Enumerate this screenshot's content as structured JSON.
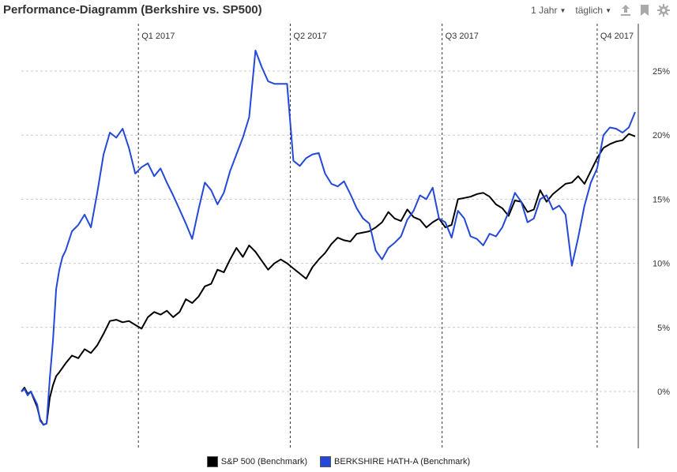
{
  "title": "Performance-Diagramm (Berkshire vs. SP500)",
  "toolbar": {
    "period_label": "1 Jahr",
    "interval_label": "täglich",
    "icons": [
      "upload-icon",
      "bookmark-icon",
      "gear-icon"
    ]
  },
  "chart_data": {
    "type": "line",
    "title": "Performance-Diagramm (Berkshire vs. SP500)",
    "xlabel": "",
    "ylabel": "",
    "ylim": [
      -3.5,
      28
    ],
    "yticks": [
      0,
      5,
      10,
      15,
      20,
      25
    ],
    "ytick_labels": [
      "0%",
      "5%",
      "10%",
      "15%",
      "20%",
      "25%"
    ],
    "grid": true,
    "legend_position": "bottom-center",
    "quarter_markers": [
      {
        "label": "Q1 2017",
        "x": 37
      },
      {
        "label": "Q2 2017",
        "x": 85
      },
      {
        "label": "Q3 2017",
        "x": 133
      },
      {
        "label": "Q4 2017",
        "x": 182
      }
    ],
    "x_range": [
      0,
      195
    ],
    "series": [
      {
        "name": "S&P 500  (Benchmark)",
        "color": "#000000",
        "x": [
          0,
          1,
          2,
          3,
          4,
          5,
          6,
          7,
          8,
          9,
          10,
          11,
          12,
          14,
          16,
          18,
          20,
          22,
          24,
          26,
          28,
          30,
          32,
          34,
          36,
          38,
          40,
          42,
          44,
          46,
          48,
          50,
          52,
          54,
          56,
          58,
          60,
          62,
          64,
          66,
          68,
          70,
          72,
          74,
          76,
          78,
          80,
          82,
          84,
          86,
          88,
          90,
          92,
          94,
          96,
          98,
          100,
          102,
          104,
          106,
          108,
          110,
          112,
          114,
          116,
          118,
          120,
          122,
          124,
          126,
          128,
          130,
          132,
          134,
          136,
          138,
          140,
          142,
          144,
          146,
          148,
          150,
          152,
          154,
          156,
          158,
          160,
          162,
          164,
          166,
          168,
          170,
          172,
          174,
          176,
          178,
          180,
          182,
          184,
          186,
          188,
          190,
          192,
          194
        ],
        "values": [
          0,
          0.3,
          -0.2,
          0,
          -0.6,
          -1.2,
          -2.2,
          -2.6,
          -2.5,
          -0.5,
          0.5,
          1.2,
          1.5,
          2.2,
          2.8,
          2.6,
          3.3,
          3.0,
          3.6,
          4.5,
          5.5,
          5.6,
          5.4,
          5.5,
          5.2,
          4.9,
          5.8,
          6.2,
          6.0,
          6.3,
          5.8,
          6.2,
          7.2,
          6.9,
          7.4,
          8.2,
          8.4,
          9.5,
          9.3,
          10.3,
          11.2,
          10.5,
          11.4,
          10.9,
          10.2,
          9.5,
          10.0,
          10.3,
          10.0,
          9.6,
          9.2,
          8.8,
          9.7,
          10.3,
          10.8,
          11.5,
          12.0,
          11.8,
          11.7,
          12.3,
          12.4,
          12.5,
          12.8,
          13.2,
          14.0,
          13.5,
          13.3,
          14.2,
          13.6,
          13.4,
          12.8,
          13.2,
          13.5,
          12.8,
          13.0,
          15.0,
          15.1,
          15.2,
          15.4,
          15.5,
          15.2,
          14.6,
          14.3,
          13.7,
          14.9,
          14.8,
          14.0,
          14.2,
          15.7,
          14.8,
          15.4,
          15.8,
          16.2,
          16.3,
          16.8,
          16.2,
          17.2,
          18.2,
          19.0,
          19.3,
          19.5,
          19.6,
          20.1,
          19.9
        ]
      },
      {
        "name": "BERKSHIRE HATH-A (Benchmark)",
        "color": "#2448d8",
        "x": [
          0,
          1,
          2,
          3,
          4,
          5,
          6,
          7,
          8,
          9,
          10,
          11,
          12,
          13,
          14,
          16,
          18,
          20,
          22,
          24,
          26,
          28,
          30,
          32,
          34,
          36,
          38,
          40,
          42,
          44,
          46,
          48,
          50,
          52,
          54,
          56,
          58,
          60,
          62,
          64,
          66,
          68,
          70,
          72,
          74,
          76,
          78,
          80,
          82,
          84,
          86,
          88,
          90,
          92,
          94,
          96,
          98,
          100,
          102,
          104,
          106,
          108,
          110,
          112,
          114,
          116,
          118,
          120,
          122,
          124,
          126,
          128,
          130,
          132,
          134,
          136,
          138,
          140,
          142,
          144,
          146,
          148,
          150,
          152,
          154,
          156,
          158,
          160,
          162,
          164,
          166,
          168,
          170,
          172,
          174,
          176,
          178,
          180,
          182,
          184,
          186,
          188,
          190,
          192,
          194
        ],
        "values": [
          0,
          0.2,
          -0.3,
          0,
          -0.5,
          -1.0,
          -2.3,
          -2.6,
          -2.5,
          1.0,
          4.0,
          8.0,
          9.5,
          10.5,
          11.0,
          12.5,
          13.0,
          13.8,
          12.8,
          15.5,
          18.5,
          20.2,
          19.8,
          20.5,
          19.0,
          17.0,
          17.5,
          17.8,
          16.8,
          17.4,
          16.3,
          15.3,
          14.2,
          13.1,
          11.9,
          14.2,
          16.3,
          15.7,
          14.6,
          15.5,
          17.2,
          18.5,
          19.8,
          21.4,
          26.6,
          25.3,
          24.2,
          24.0,
          24.0,
          24.0,
          18.0,
          17.6,
          18.2,
          18.5,
          18.6,
          17.0,
          16.2,
          16.0,
          16.4,
          15.4,
          14.3,
          13.5,
          13.1,
          11.0,
          10.3,
          11.2,
          11.6,
          12.1,
          13.4,
          14.1,
          15.3,
          15.0,
          15.9,
          13.5,
          13.2,
          12.0,
          14.1,
          13.5,
          12.1,
          11.9,
          11.4,
          12.3,
          12.1,
          12.8,
          14.0,
          15.5,
          14.8,
          13.2,
          13.5,
          15.0,
          15.3,
          14.2,
          14.5,
          13.8,
          9.8,
          12.0,
          14.5,
          16.3,
          17.4,
          20.0,
          20.6,
          20.5,
          20.2,
          20.6,
          21.8
        ]
      }
    ]
  },
  "legend": {
    "items": [
      {
        "label": "S&P 500  (Benchmark)",
        "color": "#000000"
      },
      {
        "label": "BERKSHIRE HATH-A (Benchmark)",
        "color": "#2448d8"
      }
    ]
  }
}
